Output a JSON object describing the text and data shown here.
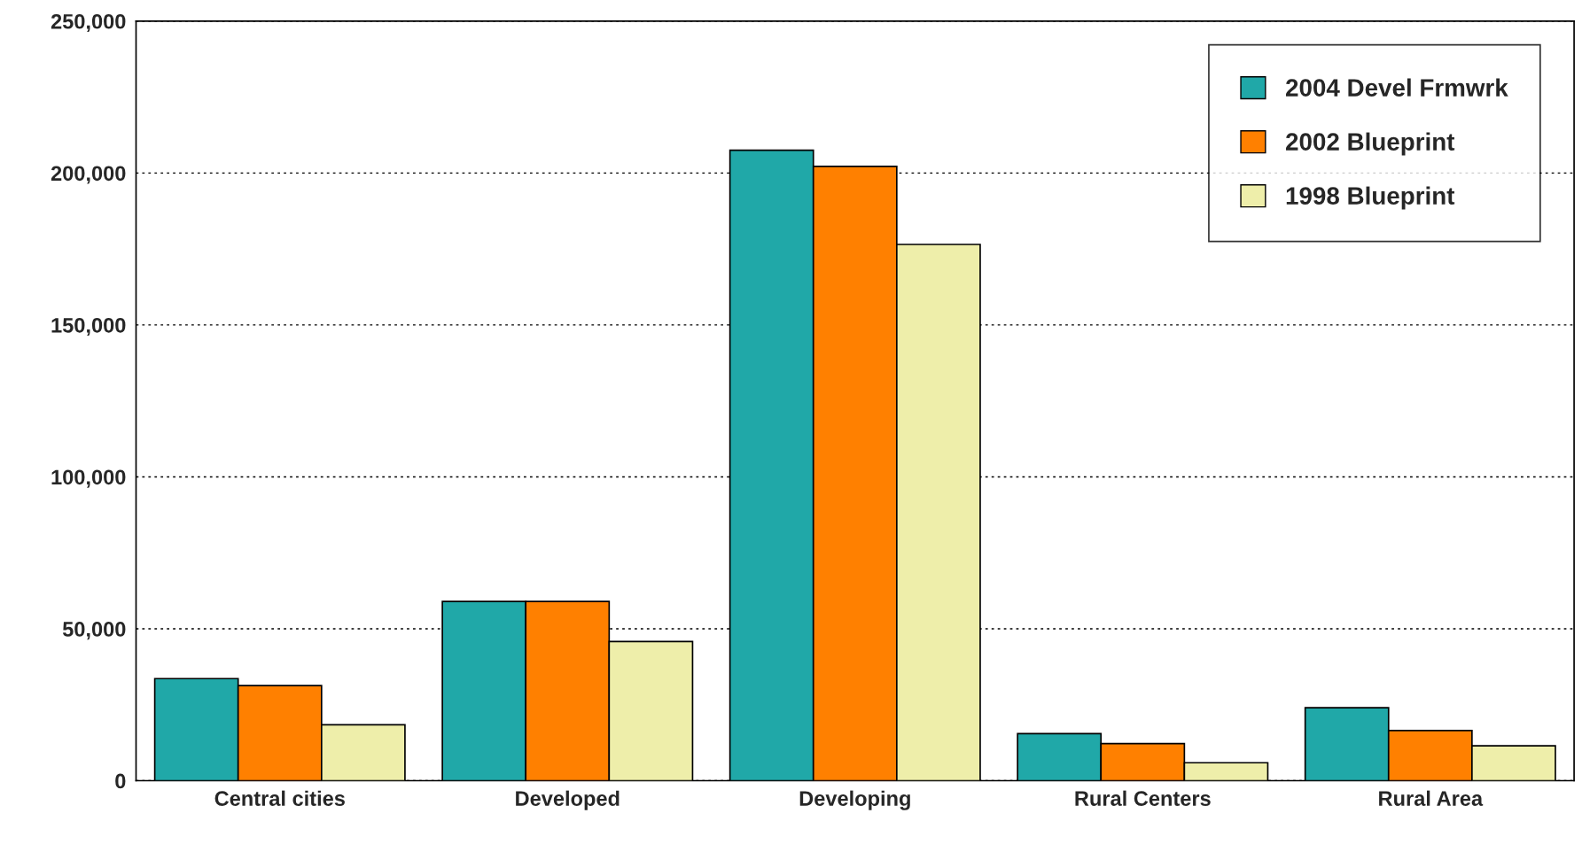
{
  "chart_data": {
    "type": "bar",
    "categories": [
      "Central cities",
      "Developed",
      "Developing",
      "Rural Centers",
      "Rural Area"
    ],
    "series": [
      {
        "name": "2004 Devel Frmwrk",
        "color": "#20a8a8",
        "values": [
          33600,
          59000,
          207500,
          15500,
          24000
        ]
      },
      {
        "name": "2002 Blueprint",
        "color": "#ff8000",
        "values": [
          31300,
          59000,
          202200,
          12200,
          16500
        ]
      },
      {
        "name": "1998 Blueprint",
        "color": "#eeeeaa",
        "values": [
          18400,
          45800,
          176500,
          5900,
          11500
        ]
      }
    ],
    "ylim": [
      0,
      250000
    ],
    "yticks": [
      {
        "value": 0,
        "label": "0"
      },
      {
        "value": 50000,
        "label": "50,000"
      },
      {
        "value": 100000,
        "label": "100,000"
      },
      {
        "value": 150000,
        "label": "150,000"
      },
      {
        "value": 200000,
        "label": "200,000"
      },
      {
        "value": 250000,
        "label": "250,000"
      }
    ],
    "grid": "y",
    "legend": "top right"
  }
}
